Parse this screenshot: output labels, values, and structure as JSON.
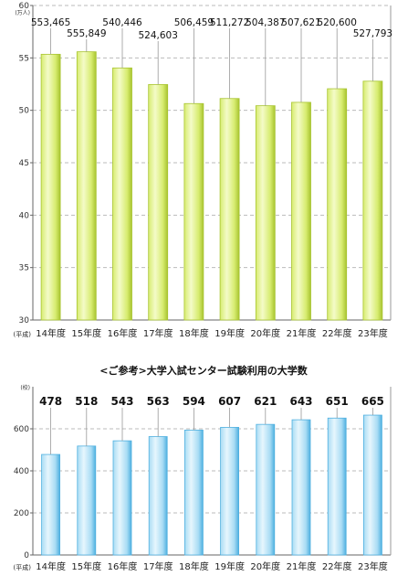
{
  "chart_data": [
    {
      "type": "bar",
      "title": "",
      "unit_label": "(万人)",
      "era_label": "(平成)",
      "categories": [
        "14年度",
        "15年度",
        "16年度",
        "17年度",
        "18年度",
        "19年度",
        "20年度",
        "21年度",
        "22年度",
        "23年度"
      ],
      "values": [
        553465,
        555849,
        540446,
        524603,
        506459,
        511272,
        504387,
        507621,
        520600,
        527793
      ],
      "value_labels": [
        "553,465",
        "555,849",
        "540,446",
        "524,603",
        "506,459",
        "511,272",
        "504,387",
        "507,621",
        "520,600",
        "527,793"
      ],
      "yticks": [
        "30",
        "35",
        "40",
        "45",
        "50",
        "55",
        "60"
      ],
      "ylim": [
        30,
        60
      ],
      "y_unit_divisor": 10000,
      "grid": true,
      "legend": "none",
      "colors": {
        "bar_light": "#f4fbc8",
        "bar_mid": "#d7ec70",
        "bar_dark": "#a8c430",
        "grid": "#bbbbbb"
      }
    },
    {
      "type": "bar",
      "title": "<ご参考>大学入試センター試験利用の大学数",
      "unit_label": "(校)",
      "era_label": "(平成)",
      "categories": [
        "14年度",
        "15年度",
        "16年度",
        "17年度",
        "18年度",
        "19年度",
        "20年度",
        "21年度",
        "22年度",
        "23年度"
      ],
      "values": [
        478,
        518,
        543,
        563,
        594,
        607,
        621,
        643,
        651,
        665
      ],
      "value_labels": [
        "478",
        "518",
        "543",
        "563",
        "594",
        "607",
        "621",
        "643",
        "651",
        "665"
      ],
      "yticks": [
        "0",
        "200",
        "400",
        "600"
      ],
      "ylim": [
        0,
        800
      ],
      "grid": true,
      "legend": "none",
      "colors": {
        "bar_light": "#e6f6fd",
        "bar_mid": "#a9dcf4",
        "bar_dark": "#4fb0e0",
        "grid": "#bbbbbb"
      }
    }
  ]
}
